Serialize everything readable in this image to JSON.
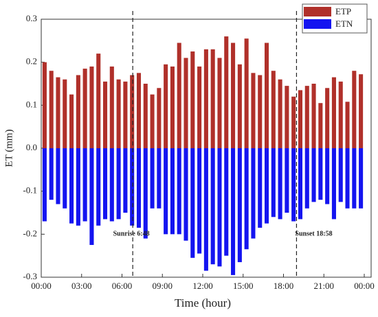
{
  "chart_data": {
    "type": "bar",
    "x_label": "Time (hour)",
    "y_label": "ET  (mm)",
    "x": [
      0.25,
      0.75,
      1.25,
      1.75,
      2.25,
      2.75,
      3.25,
      3.75,
      4.25,
      4.75,
      5.25,
      5.75,
      6.25,
      6.75,
      7.25,
      7.75,
      8.25,
      8.75,
      9.25,
      9.75,
      10.25,
      10.75,
      11.25,
      11.75,
      12.25,
      12.75,
      13.25,
      13.75,
      14.25,
      14.75,
      15.25,
      15.75,
      16.25,
      16.75,
      17.25,
      17.75,
      18.25,
      18.75,
      19.25,
      19.75,
      20.25,
      20.75,
      21.25,
      21.75,
      22.25,
      22.75,
      23.25,
      23.75
    ],
    "series": [
      {
        "name": "ETP",
        "color": "#b0302a",
        "values": [
          0.2,
          0.18,
          0.165,
          0.16,
          0.125,
          0.17,
          0.185,
          0.19,
          0.22,
          0.155,
          0.19,
          0.16,
          0.155,
          0.17,
          0.175,
          0.15,
          0.125,
          0.14,
          0.195,
          0.19,
          0.245,
          0.21,
          0.225,
          0.19,
          0.23,
          0.23,
          0.21,
          0.26,
          0.245,
          0.195,
          0.255,
          0.175,
          0.17,
          0.245,
          0.18,
          0.16,
          0.145,
          0.12,
          0.135,
          0.145,
          0.15,
          0.105,
          0.14,
          0.165,
          0.155,
          0.108,
          0.18,
          0.172
        ]
      },
      {
        "name": "ETN",
        "color": "#1414f0",
        "values": [
          -0.17,
          -0.12,
          -0.13,
          -0.14,
          -0.175,
          -0.18,
          -0.17,
          -0.225,
          -0.18,
          -0.165,
          -0.17,
          -0.165,
          -0.15,
          -0.18,
          -0.185,
          -0.21,
          -0.14,
          -0.14,
          -0.2,
          -0.2,
          -0.2,
          -0.215,
          -0.255,
          -0.245,
          -0.285,
          -0.27,
          -0.275,
          -0.25,
          -0.295,
          -0.265,
          -0.235,
          -0.21,
          -0.185,
          -0.175,
          -0.16,
          -0.165,
          -0.15,
          -0.17,
          -0.165,
          -0.14,
          -0.125,
          -0.12,
          -0.13,
          -0.165,
          -0.125,
          -0.14,
          -0.14,
          -0.14
        ]
      }
    ],
    "xlim": [
      0,
      24
    ],
    "xticks": [
      {
        "value": 0,
        "label": "00:00"
      },
      {
        "value": 3,
        "label": "03:00"
      },
      {
        "value": 6,
        "label": "06:00"
      },
      {
        "value": 9,
        "label": "09:00"
      },
      {
        "value": 12,
        "label": "12:00"
      },
      {
        "value": 15,
        "label": "15:00"
      },
      {
        "value": 18,
        "label": "18:00"
      },
      {
        "value": 21,
        "label": "21:00"
      },
      {
        "value": 24,
        "label": "00:00"
      }
    ],
    "ylim": [
      -0.3,
      0.3
    ],
    "yticks": [
      0.3,
      0.2,
      0.1,
      {
        "value": 0,
        "label": "0.0"
      },
      -0.1,
      -0.2,
      -0.3
    ],
    "annotations": [
      {
        "text": "Sunrise 6:48",
        "x": 6.8,
        "y": -0.2
      },
      {
        "text": "Sunset 18:58",
        "x": 18.967,
        "y": -0.2
      }
    ],
    "legend": "upper right"
  }
}
